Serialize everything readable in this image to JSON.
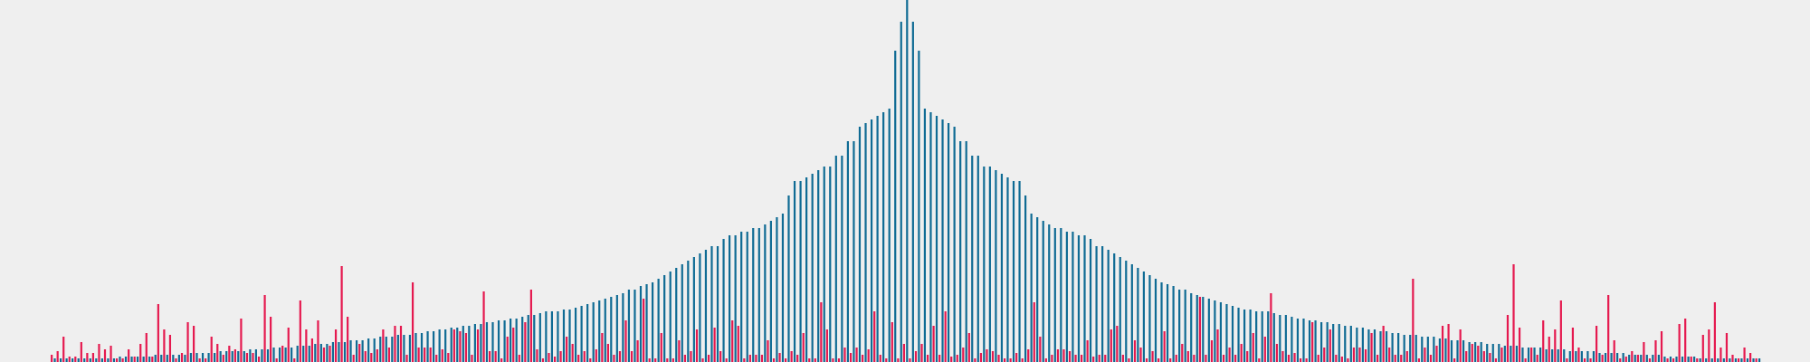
{
  "chart_data": {
    "type": "bar",
    "ylim": [
      0,
      100
    ],
    "series": [
      {
        "color": "#0f6b94",
        "values": [
          1,
          1,
          1,
          1,
          1,
          1,
          1,
          1,
          1,
          1,
          1,
          1.5,
          1.5,
          1.5,
          1.5,
          1.5,
          1.5,
          2,
          2,
          2,
          2,
          2,
          2,
          2.5,
          2.5,
          2.5,
          2.5,
          2.5,
          3,
          3,
          3,
          3,
          3,
          3.5,
          3.5,
          3.5,
          3.5,
          4,
          4,
          4,
          4,
          4.5,
          4.5,
          4.5,
          5,
          5,
          5,
          5.5,
          5.5,
          5.5,
          6,
          6,
          6,
          6.5,
          6.5,
          7,
          7,
          7,
          7.5,
          7.5,
          7.5,
          8,
          8,
          8.5,
          8.5,
          9,
          9,
          9.5,
          9.5,
          10,
          10,
          10.5,
          10.5,
          11,
          11,
          11.5,
          11.5,
          12,
          12,
          12.5,
          13,
          13,
          13.5,
          14,
          14,
          14,
          14.5,
          14.5,
          15,
          15.5,
          16,
          16.5,
          17,
          17.5,
          18,
          18.5,
          19,
          20,
          20,
          21,
          21.5,
          22,
          23,
          24,
          25,
          26,
          27,
          28,
          29,
          30,
          31,
          32,
          32,
          34,
          35,
          35,
          36,
          36,
          37,
          37,
          38,
          39,
          40,
          41,
          46,
          50,
          50,
          51,
          52,
          53,
          54,
          54,
          57,
          57,
          61,
          61,
          65,
          66,
          67,
          68,
          69,
          70,
          86,
          94,
          100,
          94,
          86,
          70,
          69,
          68,
          67,
          66,
          65,
          61,
          61,
          57,
          57,
          54,
          54,
          53,
          52,
          51,
          50,
          50,
          46,
          41,
          40,
          39,
          38,
          37,
          37,
          36,
          36,
          35,
          35,
          34,
          32,
          32,
          31,
          30,
          29,
          28,
          27,
          26,
          25,
          24,
          23,
          22,
          21.5,
          21,
          20,
          20,
          19,
          18.5,
          18,
          17.5,
          17,
          16.5,
          16,
          15.5,
          15,
          14.5,
          14.5,
          14,
          14,
          14,
          13.5,
          13,
          13,
          12.5,
          12,
          12,
          11.5,
          11.5,
          11,
          11,
          10.5,
          10.5,
          10,
          10,
          9.5,
          9.5,
          9,
          9,
          8.5,
          8.5,
          8,
          8,
          7.5,
          7.5,
          7.5,
          7,
          7,
          7,
          6.5,
          6.5,
          6,
          6,
          6,
          5.5,
          5.5,
          5.5,
          5,
          5,
          5,
          4.5,
          4.5,
          4.5,
          4,
          4,
          4,
          4,
          3.5,
          3.5,
          3.5,
          3.5,
          3,
          3,
          3,
          3,
          3,
          2.5,
          2.5,
          2.5,
          2.5,
          2.5,
          2,
          2,
          2,
          2,
          2,
          2,
          1.5,
          1.5,
          1.5,
          1.5,
          1.5,
          1.5,
          1,
          1,
          1,
          1,
          1,
          1,
          1,
          1,
          1,
          1,
          1
        ]
      },
      {
        "color": "#e5194f",
        "values": [
          2,
          3,
          7,
          1.5,
          1.5,
          5.5,
          2.5,
          2.5,
          5,
          3.5,
          4.5,
          1,
          1,
          3.5,
          1.5,
          5,
          8,
          1.5,
          16,
          9,
          7.5,
          1,
          2.5,
          11,
          10,
          1,
          1,
          7,
          5,
          2,
          4.5,
          3.5,
          12,
          2.5,
          2.5,
          1.5,
          18.5,
          12.5,
          1,
          4.5,
          9.5,
          1,
          17,
          9,
          6.5,
          11.5,
          4,
          4.5,
          9,
          26.5,
          12.5,
          2,
          5,
          3,
          2.5,
          3.5,
          9,
          4,
          10,
          10,
          2,
          22,
          4,
          4,
          4,
          2,
          3.5,
          2.5,
          9,
          8.5,
          8,
          2,
          9,
          19.5,
          3,
          3,
          1,
          7,
          9.5,
          2,
          11,
          20,
          3.5,
          1,
          2.5,
          1.5,
          3,
          7,
          5,
          2,
          3,
          1,
          3.5,
          8,
          5,
          2,
          3,
          11.5,
          3,
          6,
          17.5,
          1,
          1,
          8,
          1,
          1,
          6,
          2,
          3,
          9,
          1,
          2,
          9.5,
          3,
          1,
          11.5,
          10,
          1,
          2,
          2,
          2,
          6,
          1,
          2.5,
          1,
          3,
          2,
          8,
          1,
          1,
          16.5,
          9,
          1,
          1,
          4,
          2.5,
          4,
          2,
          3.5,
          14,
          2,
          1,
          11,
          1,
          5,
          1,
          3,
          5,
          2,
          10,
          2,
          14,
          1.5,
          2,
          4,
          8,
          1,
          2.5,
          3.5,
          3,
          2,
          1,
          1,
          2.5,
          1,
          3.5,
          16.5,
          7,
          1,
          2,
          3.5,
          3.5,
          3,
          2,
          2,
          6,
          1.5,
          2,
          2,
          9,
          10,
          2,
          1,
          6,
          4,
          1,
          3,
          1,
          8.5,
          1,
          2,
          5,
          3,
          2,
          18,
          2,
          6,
          9,
          2,
          4,
          2,
          5,
          3,
          8,
          1,
          7,
          19,
          5,
          3,
          2,
          2.5,
          1,
          1,
          11,
          2,
          4,
          9,
          2,
          1.5,
          1,
          4,
          4,
          3.5,
          8,
          2,
          10,
          4,
          2,
          2,
          3,
          23,
          1,
          4,
          2,
          4.5,
          10,
          10.5,
          1,
          9,
          3,
          5,
          4.5,
          3,
          2.5,
          1,
          4,
          13,
          27,
          9.5,
          1,
          4,
          2,
          11.5,
          7,
          9,
          17,
          1,
          9.5,
          4,
          1,
          1,
          10,
          2,
          18.5,
          6,
          1,
          1.5,
          3,
          2,
          5.5,
          1,
          6,
          8.5,
          1,
          1,
          10.5,
          12,
          1.5,
          1,
          7.5,
          9,
          16.5,
          4,
          8,
          2,
          1,
          4,
          2.5,
          1
        ]
      }
    ]
  }
}
